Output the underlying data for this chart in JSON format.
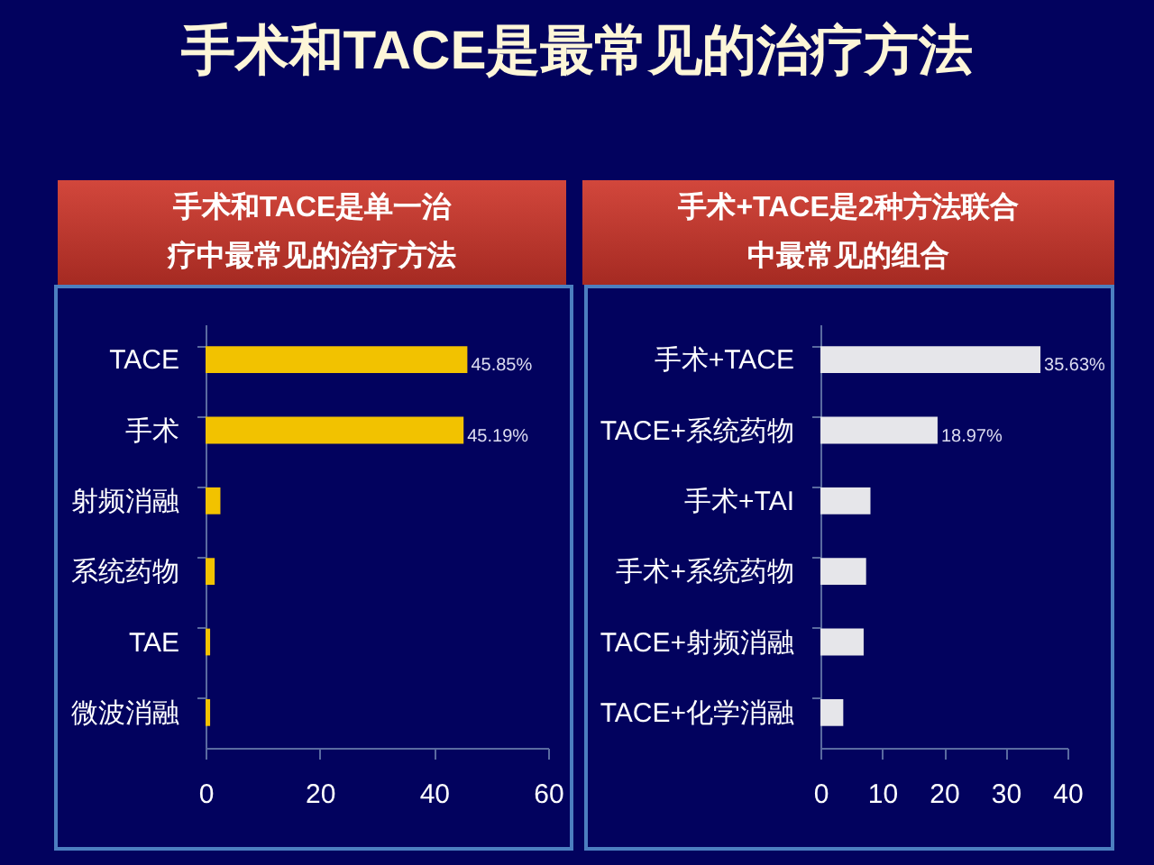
{
  "chart_data": [
    {
      "type": "bar",
      "orientation": "horizontal",
      "title": "手术和TACE是最常见的治疗方法",
      "subtitle": "手术和TACE是单一治疗中最常见的治疗方法",
      "categories": [
        "TACE",
        "手术",
        "射频消融",
        "系统药物",
        "TAE",
        "微波消融"
      ],
      "values": [
        45.85,
        45.19,
        2.6,
        1.6,
        0.8,
        0.8
      ],
      "value_labels": [
        "45.85%",
        "45.19%",
        null,
        null,
        null,
        null
      ],
      "color": "#f2c200",
      "xlim": [
        0,
        60
      ],
      "xticks": [
        0,
        20,
        40,
        60
      ]
    },
    {
      "type": "bar",
      "orientation": "horizontal",
      "subtitle": "手术+TACE是2种方法联合中最常见的组合",
      "categories": [
        "手术+TACE",
        "TACE+系统药物",
        "手术+TAI",
        "手术+系统药物",
        "TACE+射频消融",
        "TACE+化学消融"
      ],
      "values": [
        35.63,
        18.97,
        8.1,
        7.4,
        7.0,
        3.7
      ],
      "value_labels": [
        "35.63%",
        "18.97%",
        null,
        null,
        null,
        null
      ],
      "color": "#e6e6ea",
      "xlim": [
        0,
        40
      ],
      "xticks": [
        0,
        10,
        20,
        30,
        40
      ]
    }
  ]
}
